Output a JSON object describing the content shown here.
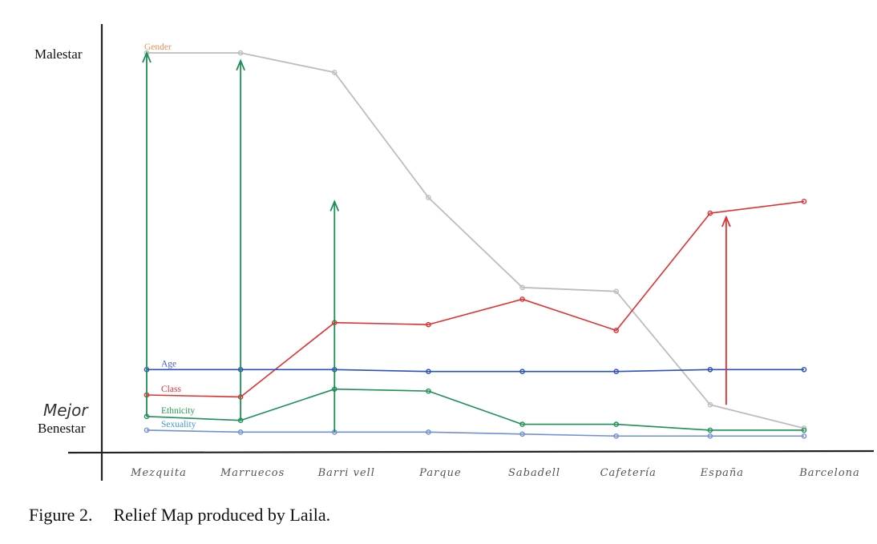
{
  "figure": {
    "caption_number": "Figure 2.",
    "caption_text": "Relief Map produced by Laila."
  },
  "chart_data": {
    "type": "line",
    "title": "",
    "xlabel": "",
    "ylabel": "",
    "y_top_label": "Malestar",
    "y_bottom_label": "Benestar",
    "y_bottom_annotation": "Mejor",
    "ylim": [
      0,
      100
    ],
    "categories": [
      "Mezquita",
      "Marruecos",
      "Barri vell",
      "Parque",
      "Sabadell",
      "Cafetería",
      "España",
      "Barcelona"
    ],
    "category_labels": [
      "Mezquita",
      "Marruecos",
      "Barri vell",
      "Parque",
      "Sabadell",
      "Cafetería",
      "España",
      "Barcelona"
    ],
    "series": [
      {
        "name": "Gender",
        "color": "#bdbdbd",
        "label_color": "#e8925a",
        "values": [
          100,
          100,
          95,
          63,
          40,
          39,
          10,
          4
        ]
      },
      {
        "name": "Class",
        "color": "#e03030",
        "label_color": "#e03030",
        "values": [
          12.5,
          12,
          31,
          30.5,
          37,
          29,
          59,
          62
        ]
      },
      {
        "name": "Age",
        "color": "#2a4fbf",
        "label_color": "#4a5fc8",
        "values": [
          19,
          19,
          19,
          18.5,
          18.5,
          18.5,
          19,
          19
        ]
      },
      {
        "name": "Ethnicity",
        "color": "#1e8f55",
        "label_color": "#2aa050",
        "values": [
          7,
          6,
          14,
          13.5,
          5,
          5,
          3.5,
          3.5
        ]
      },
      {
        "name": "Sexuality",
        "color": "#6f8fd6",
        "label_color": "#3a9ad6",
        "values": [
          3.5,
          3,
          3,
          3,
          2.5,
          2,
          2,
          2
        ]
      }
    ],
    "arrows": [
      {
        "series": "Ethnicity",
        "category": "Mezquita",
        "from_value": 7,
        "to_value": 100
      },
      {
        "series": "Ethnicity",
        "category": "Marruecos",
        "from_value": 6,
        "to_value": 98
      },
      {
        "series": "Ethnicity",
        "category": "Barri vell",
        "from_value": 3,
        "to_value": 62
      },
      {
        "series": "Class",
        "category": "España",
        "from_value": 10,
        "to_value": 58
      }
    ],
    "grid": false,
    "legend": "inline-left"
  }
}
